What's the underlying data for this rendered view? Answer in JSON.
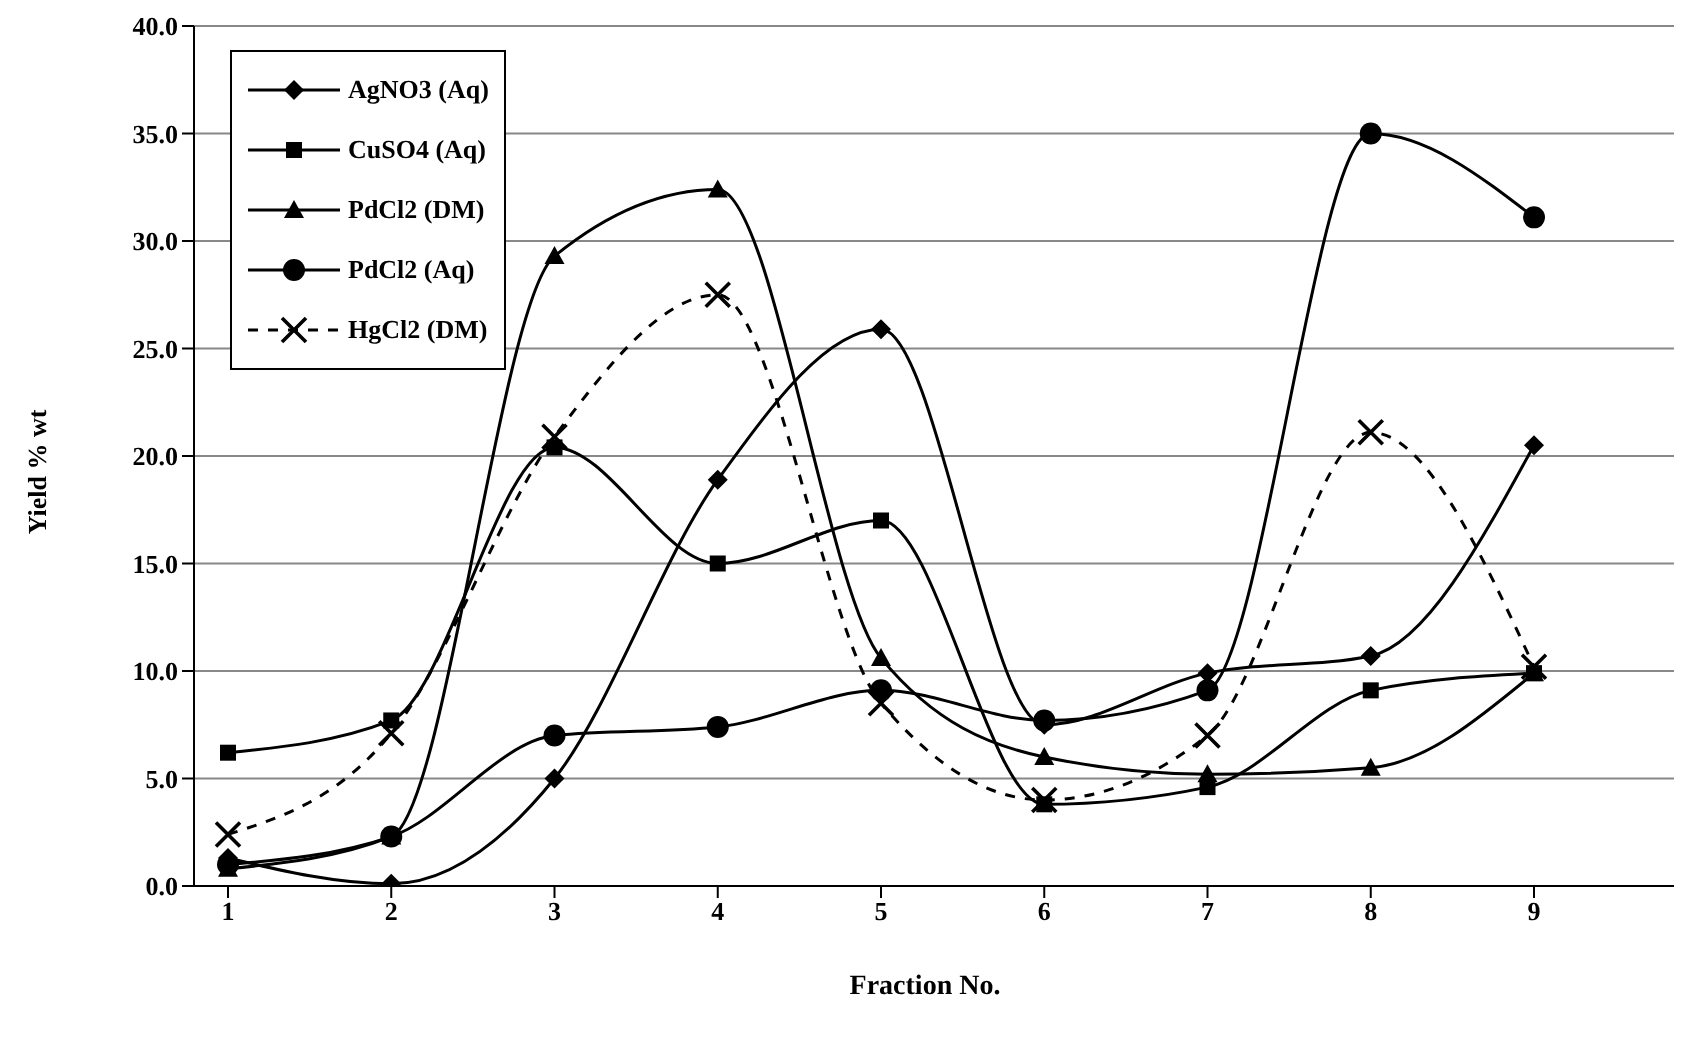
{
  "chart_data": {
    "type": "line",
    "xlabel": "Fraction No.",
    "ylabel": "Yield % wt",
    "categories": [
      "1",
      "2",
      "3",
      "4",
      "5",
      "6",
      "7",
      "8",
      "9"
    ],
    "series": [
      {
        "name": "AgNO3 (Aq)",
        "color": "#000000",
        "marker": "diamond",
        "line_style": "solid",
        "values": [
          1.3,
          0.1,
          5.0,
          18.9,
          25.9,
          7.5,
          9.9,
          10.7,
          20.5
        ]
      },
      {
        "name": "CuSO4 (Aq)",
        "color": "#000000",
        "marker": "square",
        "line_style": "solid",
        "values": [
          6.2,
          7.7,
          20.4,
          15.0,
          17.0,
          3.8,
          4.6,
          9.1,
          9.9
        ]
      },
      {
        "name": "PdCl2 (DM)",
        "color": "#000000",
        "marker": "triangle",
        "line_style": "solid",
        "values": [
          0.8,
          2.3,
          29.3,
          32.4,
          10.6,
          6.0,
          5.2,
          5.5,
          9.9
        ]
      },
      {
        "name": "PdCl2 (Aq)",
        "color": "#000000",
        "marker": "circle",
        "line_style": "solid",
        "values": [
          1.0,
          2.3,
          7.0,
          7.4,
          9.1,
          7.7,
          9.1,
          35.0,
          31.1
        ]
      },
      {
        "name": "HgCl2 (DM)",
        "color": "#000000",
        "marker": "cross",
        "line_style": "dashed",
        "values": [
          2.4,
          7.1,
          20.9,
          27.5,
          8.5,
          4.0,
          7.0,
          21.1,
          10.2
        ]
      }
    ],
    "ylim": [
      0,
      40
    ],
    "yticks": [
      {
        "value": 0,
        "label": "0.0"
      },
      {
        "value": 5,
        "label": "5.0"
      },
      {
        "value": 10,
        "label": "10.0"
      },
      {
        "value": 15,
        "label": "15.0"
      },
      {
        "value": 20,
        "label": "20.0"
      },
      {
        "value": 25,
        "label": "25.0"
      },
      {
        "value": 30,
        "label": "30.0"
      },
      {
        "value": 35,
        "label": "35.0"
      },
      {
        "value": 40,
        "label": "40.0"
      }
    ],
    "grid": "y",
    "legend": "top left"
  }
}
